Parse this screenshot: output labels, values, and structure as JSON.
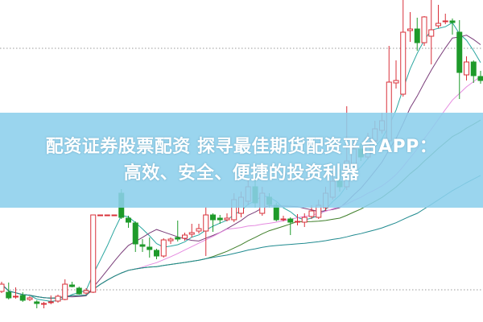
{
  "banner": {
    "title_lines": [
      "配资证券股票配资 探寻最佳期货配资平台APP：",
      "高效、安全、便捷的投资利器"
    ],
    "color": "#8ccfec"
  },
  "chart_data": {
    "type": "candlestick",
    "ylim": [
      5,
      25
    ],
    "grid": "dotted horizontal",
    "up_color": "#d9303a",
    "down_color": "#1e9a2a",
    "ma_periods": [
      5,
      10,
      20,
      30,
      60
    ],
    "ma_colors": [
      "#2aa6a0",
      "#7a3d7a",
      "#e58be0",
      "#3f7f2a",
      "#1f8a8f"
    ],
    "candles_ochl": [
      [
        6.9,
        7.35,
        7.5,
        6.8
      ],
      [
        6.85,
        6.5,
        7.45,
        6.4
      ],
      [
        6.55,
        6.6,
        7.15,
        6.45
      ],
      [
        6.65,
        6.35,
        6.85,
        6.25
      ],
      [
        6.4,
        6.5,
        6.6,
        6.3
      ],
      [
        6.25,
        6.15,
        6.35,
        5.85
      ],
      [
        6.1,
        6.15,
        6.25,
        5.85
      ],
      [
        6.2,
        6.25,
        6.65,
        6.1
      ],
      [
        6.3,
        6.6,
        6.7,
        6.2
      ],
      [
        6.4,
        7.35,
        7.65,
        6.35
      ],
      [
        7.3,
        7.2,
        7.5,
        7.15
      ],
      [
        7.1,
        6.75,
        7.2,
        6.7
      ],
      [
        6.8,
        6.95,
        7.1,
        6.7
      ],
      [
        6.85,
        11.65,
        11.65,
        6.8
      ],
      [
        11.65,
        11.65,
        11.65,
        11.65
      ],
      [
        11.65,
        11.65,
        11.65,
        11.65
      ],
      [
        11.65,
        11.65,
        11.65,
        11.65
      ],
      [
        13,
        11.5,
        13.25,
        11.4
      ],
      [
        11.45,
        11.2,
        11.6,
        10.85
      ],
      [
        11.15,
        9.85,
        11.25,
        9.35
      ],
      [
        9.8,
        9.7,
        10.15,
        9.35
      ],
      [
        9.65,
        9.5,
        10.25,
        9
      ],
      [
        9.45,
        9.1,
        9.55,
        8.9
      ],
      [
        9.1,
        10.1,
        10.2,
        9
      ],
      [
        10.05,
        10.15,
        10.25,
        9.85
      ],
      [
        10.25,
        10.15,
        11.3,
        10
      ],
      [
        10.2,
        10.4,
        10.55,
        10.05
      ],
      [
        10.45,
        10.55,
        11.1,
        10.25
      ],
      [
        10.65,
        10.8,
        11.1,
        10.5
      ],
      [
        10.65,
        11.65,
        12.15,
        9.1
      ],
      [
        11.65,
        11.35,
        11.75,
        10.6
      ],
      [
        11.45,
        11.35,
        11.65,
        11.1
      ],
      [
        11.35,
        11.45,
        11.75,
        11.25
      ],
      [
        11.35,
        12.6,
        13,
        11.2
      ],
      [
        11.75,
        12.75,
        13.1,
        11.5
      ],
      [
        12.5,
        13.4,
        13.9,
        12.25
      ],
      [
        13.4,
        12.4,
        14,
        12.1
      ],
      [
        11.75,
        13,
        13.4,
        11.6
      ],
      [
        12.75,
        12.3,
        13,
        12.1
      ],
      [
        12.25,
        11.35,
        12.4,
        11.25
      ],
      [
        11.35,
        11.4,
        11.6,
        11.25
      ],
      [
        11.4,
        11.2,
        11.5,
        10.4
      ],
      [
        11.2,
        11.25,
        11.7,
        11
      ],
      [
        11.2,
        11.5,
        11.75,
        10.9
      ],
      [
        11.55,
        11.9,
        12.25,
        11.4
      ],
      [
        11.5,
        12.25,
        12.6,
        11.4
      ],
      [
        12.1,
        13,
        13.4,
        11.9
      ],
      [
        12.75,
        13.75,
        14.25,
        12.6
      ],
      [
        13.75,
        13.4,
        14.5,
        13.1
      ],
      [
        13.4,
        15,
        18.4,
        13.2
      ],
      [
        14.75,
        15.75,
        16.25,
        14.5
      ],
      [
        15.75,
        15.25,
        16.1,
        15
      ],
      [
        15.25,
        16.4,
        16.75,
        15.1
      ],
      [
        16.25,
        17,
        17.5,
        16.1
      ],
      [
        16.9,
        17.5,
        18,
        16.7
      ],
      [
        16.25,
        19.9,
        22.15,
        16.1
      ],
      [
        19.85,
        20,
        21.25,
        19.5
      ],
      [
        19.15,
        23,
        25,
        19
      ],
      [
        23.1,
        23.2,
        24.25,
        22.4
      ],
      [
        23.2,
        22.35,
        23.9,
        21.85
      ],
      [
        22.35,
        23.95,
        24,
        22.15
      ],
      [
        22.75,
        23.15,
        25,
        21
      ],
      [
        23.4,
        23.55,
        24.7,
        23.25
      ],
      [
        23.65,
        23.7,
        24.15,
        23.5
      ],
      [
        23.7,
        23.6,
        23.85,
        22.85
      ],
      [
        23,
        20.5,
        23.75,
        18.85
      ],
      [
        20.35,
        21.15,
        21.5,
        20
      ],
      [
        21.15,
        20.3,
        21.25,
        19.85
      ],
      [
        20.25,
        20,
        20.6,
        19.8
      ]
    ]
  }
}
